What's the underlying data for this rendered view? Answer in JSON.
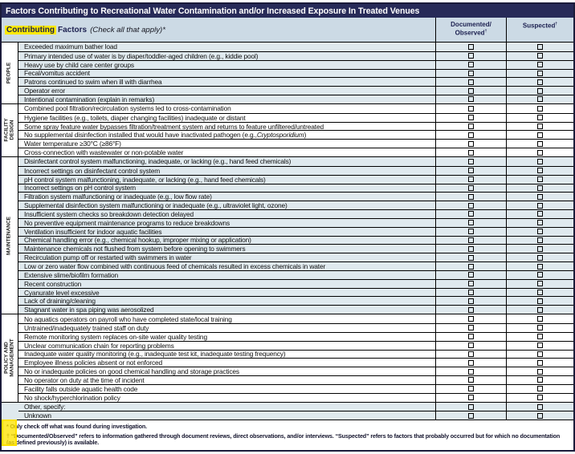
{
  "title": "Factors Contributing to Recreational Water Contamination and/or Increased Exposure In Treated Venues",
  "header": {
    "highlight_word": "Contributing",
    "label_rest": "Factors",
    "instruction": "(Check all that apply)*",
    "col_documented_line1": "Documented/",
    "col_documented_line2": "Observed",
    "col_suspected": "Suspected",
    "dagger": "†"
  },
  "colors": {
    "title_bar_bg": "#272a58",
    "title_text": "#ffffff",
    "header_bg": "#ccdae5",
    "header_text": "#1c2050",
    "row_shade": "#dfe9ee",
    "highlight_yellow": "#fae900",
    "border": "#000000"
  },
  "groups": [
    {
      "id": "people",
      "label_lines": [
        "PEOPLE"
      ],
      "shaded": true,
      "rows": [
        "Exceeded maximum bather load",
        "Primary intended use of water is by diaper/toddler-aged children (e.g., kiddie pool)",
        "Heavy use by child care center groups",
        "Fecal/vomitus accident",
        "Patrons continued to swim when ill with diarrhea",
        "Operator error",
        "Intentional contamination (explain in remarks)"
      ]
    },
    {
      "id": "facility-design",
      "label_lines": [
        "FACILITY",
        "DESIGN"
      ],
      "shaded": false,
      "rows": [
        "Combined pool filtration/recirculation systems led to cross-contamination",
        "Hygiene facilities (e.g., toilets, diaper changing facilities) inadequate or distant",
        "Some spray feature water bypasses filtration/treatment system and returns to feature unfiltered/untreated",
        {
          "segments": [
            {
              "text": "No supplemental disinfection installed that would have inactivated pathogen  (e.g., ",
              "italic": false
            },
            {
              "text": "Cryptosporidium",
              "italic": true
            },
            {
              "text": ")",
              "italic": false
            }
          ]
        },
        "Water temperature ≥30°C (≥86°F)",
        "Cross-connection with wastewater or non-potable water"
      ]
    },
    {
      "id": "maintenance",
      "label_lines": [
        "MAINTENANCE"
      ],
      "shaded": true,
      "rows": [
        "Disinfectant control system malfunctioning, inadequate, or lacking (e.g., hand feed chemicals)",
        "Incorrect settings on disinfectant control system",
        "pH control system malfunctioning, inadequate, or lacking (e.g., hand feed chemicals)",
        "Incorrect settings on pH control system",
        "Filtration system malfunctioning or inadequate (e.g., low flow rate)",
        "Supplemental disinfection system malfunctioning or inadequate (e.g., ultraviolet light, ozone)",
        "Insufficient system checks so breakdown detection delayed",
        "No preventive equipment maintenance programs to reduce breakdowns",
        "Ventilation insufficient for indoor aquatic facilities",
        "Chemical handling error (e.g., chemical hookup, improper mixing or application)",
        "Maintenance chemicals not flushed from system before opening to swimmers",
        "Recirculation pump off or restarted with swimmers in water",
        "Low or zero water flow combined with continuous feed of chemicals resulted in excess chemicals in water",
        "Extensive slime/biofilm formation",
        "Recent construction",
        "Cyanurate level excessive",
        "Lack of draining/cleaning",
        "Stagnant water in spa piping was aerosolized"
      ]
    },
    {
      "id": "policy-and-management",
      "label_lines": [
        "POLICY AND",
        "MANAGEMENT"
      ],
      "shaded": false,
      "rows": [
        "No aquatics operators on payroll who have completed state/local training",
        "Untrained/inadequately trained staff on duty",
        "Remote monitoring system replaces on-site water quality testing",
        "Unclear communication chain for reporting problems",
        "Inadequate water quality monitoring (e.g., inadequate test kit, inadequate testing frequency)",
        "Employee illness policies absent or not enforced",
        "No or inadequate policies on good chemical handling and storage practices",
        "No operator on duty at the time of incident",
        "Facility falls outside aquatic health code",
        "No shock/hyperchlorination policy"
      ]
    },
    {
      "id": "other",
      "label_lines": [],
      "shaded": true,
      "rows": [
        "Other, specify:",
        "Unknown"
      ]
    }
  ],
  "footnotes": {
    "asterisk": "* Only check off what was found during investigation.",
    "dagger": "† “Documented/Observed” refers to information gathered through document reviews, direct observations, and/or interviews. “Suspected” refers to factors that probably occurred but for which no documentation (as defined previously) is available."
  }
}
